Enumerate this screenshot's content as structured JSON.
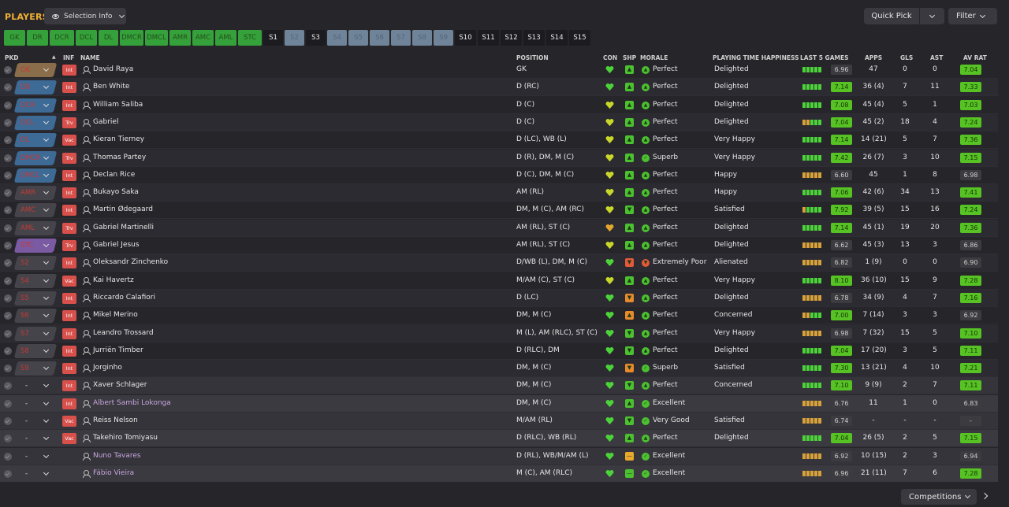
{
  "header": {
    "title": "PLAYERS",
    "selection_info": "Selection Info",
    "quick_pick": "Quick Pick",
    "filter": "Filter"
  },
  "chips": [
    {
      "label": "GK",
      "state": "g"
    },
    {
      "label": "DR",
      "state": "g"
    },
    {
      "label": "DCR",
      "state": "g"
    },
    {
      "label": "DCL",
      "state": "g"
    },
    {
      "label": "DL",
      "state": "g"
    },
    {
      "label": "DMCR",
      "state": "g"
    },
    {
      "label": "DMCL",
      "state": "g"
    },
    {
      "label": "AMR",
      "state": "g"
    },
    {
      "label": "AMC",
      "state": "g"
    },
    {
      "label": "AML",
      "state": "g"
    },
    {
      "label": "STC",
      "state": "g"
    },
    {
      "label": "S1",
      "state": "d"
    },
    {
      "label": "S2",
      "state": "b"
    },
    {
      "label": "S3",
      "state": "d"
    },
    {
      "label": "S4",
      "state": "b"
    },
    {
      "label": "S5",
      "state": "b"
    },
    {
      "label": "S6",
      "state": "b"
    },
    {
      "label": "S7",
      "state": "b"
    },
    {
      "label": "S8",
      "state": "b"
    },
    {
      "label": "S9",
      "state": "b"
    },
    {
      "label": "S10",
      "state": "d"
    },
    {
      "label": "S11",
      "state": "d"
    },
    {
      "label": "S12",
      "state": "d"
    },
    {
      "label": "S13",
      "state": "d"
    },
    {
      "label": "S14",
      "state": "d"
    },
    {
      "label": "S15",
      "state": "d"
    }
  ],
  "columns": {
    "pkd": "PKD",
    "inf": "INF",
    "name": "NAME",
    "position": "POSITION",
    "con": "CON",
    "shp": "SHP",
    "morale": "MORALE",
    "pth": "PLAYING TIME HAPPINESS",
    "last5": "LAST 5 GAMES",
    "apps": "APPS",
    "gls": "GLS",
    "ast": "AST",
    "avrat": "AV RAT"
  },
  "players": [
    {
      "pkd": "GK",
      "pkd_style": "gk",
      "inf": "Int",
      "name": "David Raya",
      "loan": false,
      "position": "GK",
      "con": "green",
      "shp": "up2",
      "morale": "Perfect",
      "mood": "up",
      "happiness": "Delighted",
      "last5": [
        "g",
        "g",
        "g",
        "g",
        "g"
      ],
      "last5_rating": "6.96",
      "last5_high": false,
      "apps": "47",
      "gls": "0",
      "ast": "0",
      "avrat": "7.04",
      "avrat_high": true,
      "res": false
    },
    {
      "pkd": "DR",
      "pkd_style": "blue",
      "inf": "Int",
      "name": "Ben White",
      "loan": false,
      "position": "D (RC)",
      "con": "green",
      "shp": "up",
      "morale": "Perfect",
      "mood": "up",
      "happiness": "Delighted",
      "last5": [
        "g",
        "g",
        "g",
        "g",
        "g"
      ],
      "last5_rating": "7.14",
      "last5_high": true,
      "apps": "36 (4)",
      "gls": "7",
      "ast": "11",
      "avrat": "7.33",
      "avrat_high": true,
      "res": false
    },
    {
      "pkd": "DCR",
      "pkd_style": "blue",
      "inf": "Int",
      "name": "William Saliba",
      "loan": false,
      "position": "D (C)",
      "con": "yellow",
      "shp": "up",
      "morale": "Perfect",
      "mood": "up",
      "happiness": "Delighted",
      "last5": [
        "g",
        "g",
        "g",
        "g",
        "g"
      ],
      "last5_rating": "7.08",
      "last5_high": true,
      "apps": "45 (4)",
      "gls": "5",
      "ast": "1",
      "avrat": "7.03",
      "avrat_high": true,
      "res": false
    },
    {
      "pkd": "DCL",
      "pkd_style": "blue",
      "inf": "Trv",
      "name": "Gabriel",
      "loan": false,
      "position": "D (C)",
      "con": "yellow",
      "shp": "up2",
      "morale": "Perfect",
      "mood": "up",
      "happiness": "Delighted",
      "last5": [
        "o",
        "o",
        "g",
        "g",
        "g"
      ],
      "last5_rating": "7.04",
      "last5_high": true,
      "apps": "45 (2)",
      "gls": "18",
      "ast": "4",
      "avrat": "7.24",
      "avrat_high": true,
      "res": false
    },
    {
      "pkd": "DL",
      "pkd_style": "blue",
      "inf": "Vac",
      "name": "Kieran Tierney",
      "loan": false,
      "position": "D (LC), WB (L)",
      "con": "yellow",
      "shp": "up2",
      "morale": "Perfect",
      "mood": "up",
      "happiness": "Very Happy",
      "last5": [
        "g",
        "g",
        "g",
        "g",
        "g"
      ],
      "last5_rating": "7.14",
      "last5_high": true,
      "apps": "14 (21)",
      "gls": "5",
      "ast": "7",
      "avrat": "7.36",
      "avrat_high": true,
      "res": false
    },
    {
      "pkd": "DMCR",
      "pkd_style": "blue",
      "inf": "Trv",
      "name": "Thomas Partey",
      "loan": false,
      "position": "D (R), DM, M (C)",
      "con": "yellow",
      "shp": "up2",
      "morale": "Superb",
      "mood": "check",
      "happiness": "Very Happy",
      "last5": [
        "g",
        "g",
        "g",
        "g",
        "g"
      ],
      "last5_rating": "7.42",
      "last5_high": true,
      "apps": "26 (7)",
      "gls": "3",
      "ast": "10",
      "avrat": "7.15",
      "avrat_high": true,
      "res": false
    },
    {
      "pkd": "DMCL",
      "pkd_style": "blue",
      "inf": "Int",
      "name": "Declan Rice",
      "loan": false,
      "position": "D (C), DM, M (C)",
      "con": "yellow",
      "shp": "up2",
      "morale": "Perfect",
      "mood": "up",
      "happiness": "Happy",
      "last5": [
        "o",
        "o",
        "o",
        "o",
        "o"
      ],
      "last5_rating": "6.60",
      "last5_high": false,
      "apps": "45",
      "gls": "1",
      "ast": "8",
      "avrat": "6.98",
      "avrat_high": false,
      "res": false
    },
    {
      "pkd": "AMR",
      "pkd_style": "dark",
      "inf": "Int",
      "name": "Bukayo Saka",
      "loan": false,
      "position": "AM (RL)",
      "con": "yellow",
      "shp": "up",
      "morale": "Perfect",
      "mood": "up",
      "happiness": "Happy",
      "last5": [
        "g",
        "g",
        "g",
        "g",
        "g"
      ],
      "last5_rating": "7.06",
      "last5_high": true,
      "apps": "42 (6)",
      "gls": "34",
      "ast": "13",
      "avrat": "7.41",
      "avrat_high": true,
      "res": false
    },
    {
      "pkd": "AMC",
      "pkd_style": "dark",
      "inf": "Int",
      "name": "Martin Ødegaard",
      "loan": false,
      "position": "DM, M (C), AM (RC)",
      "con": "yellow",
      "shp": "down",
      "morale": "Perfect",
      "mood": "up",
      "happiness": "Satisfied",
      "last5": [
        "o",
        "g",
        "g",
        "g",
        "g"
      ],
      "last5_rating": "7.92",
      "last5_high": true,
      "apps": "39 (5)",
      "gls": "15",
      "ast": "16",
      "avrat": "7.24",
      "avrat_high": true,
      "res": false
    },
    {
      "pkd": "AML",
      "pkd_style": "dark",
      "inf": "Trv",
      "name": "Gabriel Martinelli",
      "loan": false,
      "position": "AM (RL), ST (C)",
      "con": "orange",
      "shp": "up",
      "morale": "Perfect",
      "mood": "up",
      "happiness": "Delighted",
      "last5": [
        "g",
        "g",
        "g",
        "g",
        "g"
      ],
      "last5_rating": "7.14",
      "last5_high": true,
      "apps": "45 (1)",
      "gls": "19",
      "ast": "20",
      "avrat": "7.36",
      "avrat_high": true,
      "res": false
    },
    {
      "pkd": "STC",
      "pkd_style": "purple",
      "inf": "Trv",
      "name": "Gabriel Jesus",
      "loan": false,
      "position": "AM (RL), ST (C)",
      "con": "yellow",
      "shp": "up",
      "morale": "Perfect",
      "mood": "up",
      "happiness": "Delighted",
      "last5": [
        "o",
        "o",
        "o",
        "o",
        "o"
      ],
      "last5_rating": "6.62",
      "last5_high": false,
      "apps": "45 (3)",
      "gls": "13",
      "ast": "3",
      "avrat": "6.86",
      "avrat_high": false,
      "res": false
    },
    {
      "pkd": "S2",
      "pkd_style": "dark",
      "inf": "Int",
      "name": "Oleksandr Zinchenko",
      "loan": false,
      "position": "D/WB (L), DM, M (C)",
      "con": "green",
      "shp": "red",
      "morale": "Extremely Poor",
      "mood": "bad",
      "happiness": "Alienated",
      "last5": [
        "o",
        "o",
        "o",
        "o",
        "o"
      ],
      "last5_rating": "6.82",
      "last5_high": false,
      "apps": "1 (9)",
      "gls": "0",
      "ast": "0",
      "avrat": "6.90",
      "avrat_high": false,
      "res": false
    },
    {
      "pkd": "S4",
      "pkd_style": "dark",
      "inf": "Vac",
      "name": "Kai Havertz",
      "loan": false,
      "position": "M/AM (C), ST (C)",
      "con": "yellow",
      "shp": "up",
      "morale": "Perfect",
      "mood": "up",
      "happiness": "Very Happy",
      "last5": [
        "g",
        "g",
        "g",
        "g",
        "g"
      ],
      "last5_rating": "8.10",
      "last5_high": true,
      "apps": "36 (10)",
      "gls": "15",
      "ast": "9",
      "avrat": "7.28",
      "avrat_high": true,
      "res": false
    },
    {
      "pkd": "S5",
      "pkd_style": "dark",
      "inf": "Int",
      "name": "Riccardo Calafiori",
      "loan": false,
      "position": "D (LC)",
      "con": "green",
      "shp": "downo",
      "morale": "Perfect",
      "mood": "up",
      "happiness": "Delighted",
      "last5": [
        "o",
        "o",
        "o",
        "o",
        "o"
      ],
      "last5_rating": "6.78",
      "last5_high": false,
      "apps": "34 (9)",
      "gls": "4",
      "ast": "7",
      "avrat": "7.16",
      "avrat_high": true,
      "res": false
    },
    {
      "pkd": "S6",
      "pkd_style": "dark",
      "inf": "Int",
      "name": "Mikel Merino",
      "loan": false,
      "position": "DM, M (C)",
      "con": "green",
      "shp": "upo",
      "morale": "Perfect",
      "mood": "up",
      "happiness": "Concerned",
      "last5": [
        "o",
        "o",
        "g",
        "g",
        "g"
      ],
      "last5_rating": "7.00",
      "last5_high": true,
      "apps": "7 (14)",
      "gls": "3",
      "ast": "3",
      "avrat": "6.92",
      "avrat_high": false,
      "res": false
    },
    {
      "pkd": "S7",
      "pkd_style": "dark",
      "inf": "Int",
      "name": "Leandro Trossard",
      "loan": false,
      "position": "M (L), AM (RLC), ST (C)",
      "con": "green",
      "shp": "down",
      "morale": "Perfect",
      "mood": "up",
      "happiness": "Very Happy",
      "last5": [
        "o",
        "o",
        "o",
        "o",
        "o"
      ],
      "last5_rating": "6.98",
      "last5_high": false,
      "apps": "7 (32)",
      "gls": "15",
      "ast": "5",
      "avrat": "7.10",
      "avrat_high": true,
      "res": false
    },
    {
      "pkd": "S8",
      "pkd_style": "dark",
      "inf": "Int",
      "name": "Jurriën Timber",
      "loan": false,
      "position": "D (RLC), DM",
      "con": "green",
      "shp": "down",
      "morale": "Perfect",
      "mood": "up",
      "happiness": "Delighted",
      "last5": [
        "g",
        "g",
        "g",
        "g",
        "g"
      ],
      "last5_rating": "7.04",
      "last5_high": true,
      "apps": "17 (20)",
      "gls": "3",
      "ast": "5",
      "avrat": "7.11",
      "avrat_high": true,
      "res": false
    },
    {
      "pkd": "S9",
      "pkd_style": "dark",
      "inf": "Int",
      "name": "Jorginho",
      "loan": false,
      "position": "DM, M (C)",
      "con": "green",
      "shp": "downo",
      "morale": "Superb",
      "mood": "check",
      "happiness": "Satisfied",
      "last5": [
        "g",
        "g",
        "g",
        "g",
        "g"
      ],
      "last5_rating": "7.30",
      "last5_high": true,
      "apps": "13 (21)",
      "gls": "4",
      "ast": "10",
      "avrat": "7.21",
      "avrat_high": true,
      "res": false
    },
    {
      "pkd": "-",
      "pkd_style": "none",
      "inf": "Int",
      "name": "Xaver Schlager",
      "loan": false,
      "position": "DM, M (C)",
      "con": "green",
      "shp": "down",
      "morale": "Perfect",
      "mood": "up",
      "happiness": "Concerned",
      "last5": [
        "g",
        "g",
        "g",
        "g",
        "g"
      ],
      "last5_rating": "7.10",
      "last5_high": true,
      "apps": "9 (9)",
      "gls": "2",
      "ast": "7",
      "avrat": "7.11",
      "avrat_high": true,
      "res": true
    },
    {
      "pkd": "-",
      "pkd_style": "none",
      "inf": "Int",
      "name": "Albert Sambi Lokonga",
      "loan": true,
      "position": "DM, M (C)",
      "con": "green",
      "shp": "up2",
      "morale": "Excellent",
      "mood": "check",
      "happiness": "",
      "last5": [
        "o",
        "o",
        "o",
        "o",
        "o"
      ],
      "last5_rating": "6.76",
      "last5_high": false,
      "apps": "11",
      "gls": "1",
      "ast": "0",
      "avrat": "6.83",
      "avrat_high": false,
      "res": true
    },
    {
      "pkd": "-",
      "pkd_style": "none",
      "inf": "Vac",
      "name": "Reiss Nelson",
      "loan": false,
      "position": "M/AM (RL)",
      "con": "green",
      "shp": "down",
      "morale": "Very Good",
      "mood": "check",
      "happiness": "Satisfied",
      "last5": [
        "o",
        "o",
        "o",
        "o",
        "o"
      ],
      "last5_rating": "6.74",
      "last5_high": false,
      "apps": "-",
      "gls": "-",
      "ast": "-",
      "avrat": "-",
      "avrat_high": false,
      "res": true
    },
    {
      "pkd": "-",
      "pkd_style": "none",
      "inf": "Vac",
      "name": "Takehiro Tomiyasu",
      "loan": false,
      "position": "D (RLC), WB (RL)",
      "con": "green",
      "shp": "up",
      "morale": "Perfect",
      "mood": "up",
      "happiness": "Delighted",
      "last5": [
        "g",
        "g",
        "g",
        "g",
        "g"
      ],
      "last5_rating": "7.04",
      "last5_high": true,
      "apps": "26 (5)",
      "gls": "2",
      "ast": "5",
      "avrat": "7.15",
      "avrat_high": true,
      "res": true
    },
    {
      "pkd": "-",
      "pkd_style": "none",
      "inf": "",
      "name": "Nuno Tavares",
      "loan": true,
      "position": "D (RL), WB/M/AM (L)",
      "con": "green",
      "shp": "flato",
      "morale": "Excellent",
      "mood": "check",
      "happiness": "",
      "last5": [
        "o",
        "o",
        "o",
        "o",
        "o"
      ],
      "last5_rating": "6.92",
      "last5_high": false,
      "apps": "10 (15)",
      "gls": "2",
      "ast": "3",
      "avrat": "6.94",
      "avrat_high": false,
      "res": true
    },
    {
      "pkd": "-",
      "pkd_style": "none",
      "inf": "",
      "name": "Fábio Vieira",
      "loan": true,
      "position": "M (C), AM (RLC)",
      "con": "green",
      "shp": "flat",
      "morale": "Excellent",
      "mood": "check",
      "happiness": "",
      "last5": [
        "o",
        "o",
        "o",
        "o",
        "o"
      ],
      "last5_rating": "6.96",
      "last5_high": false,
      "apps": "21 (11)",
      "gls": "7",
      "ast": "6",
      "avrat": "7.28",
      "avrat_high": true,
      "res": true
    }
  ],
  "footer": {
    "competitions": "Competitions"
  },
  "colors": {
    "accent": "#f2b233",
    "good": "#4cc130",
    "rating_high": "#56c223",
    "rating_low": "#3c3b40",
    "injury_red": "#d7504c"
  }
}
